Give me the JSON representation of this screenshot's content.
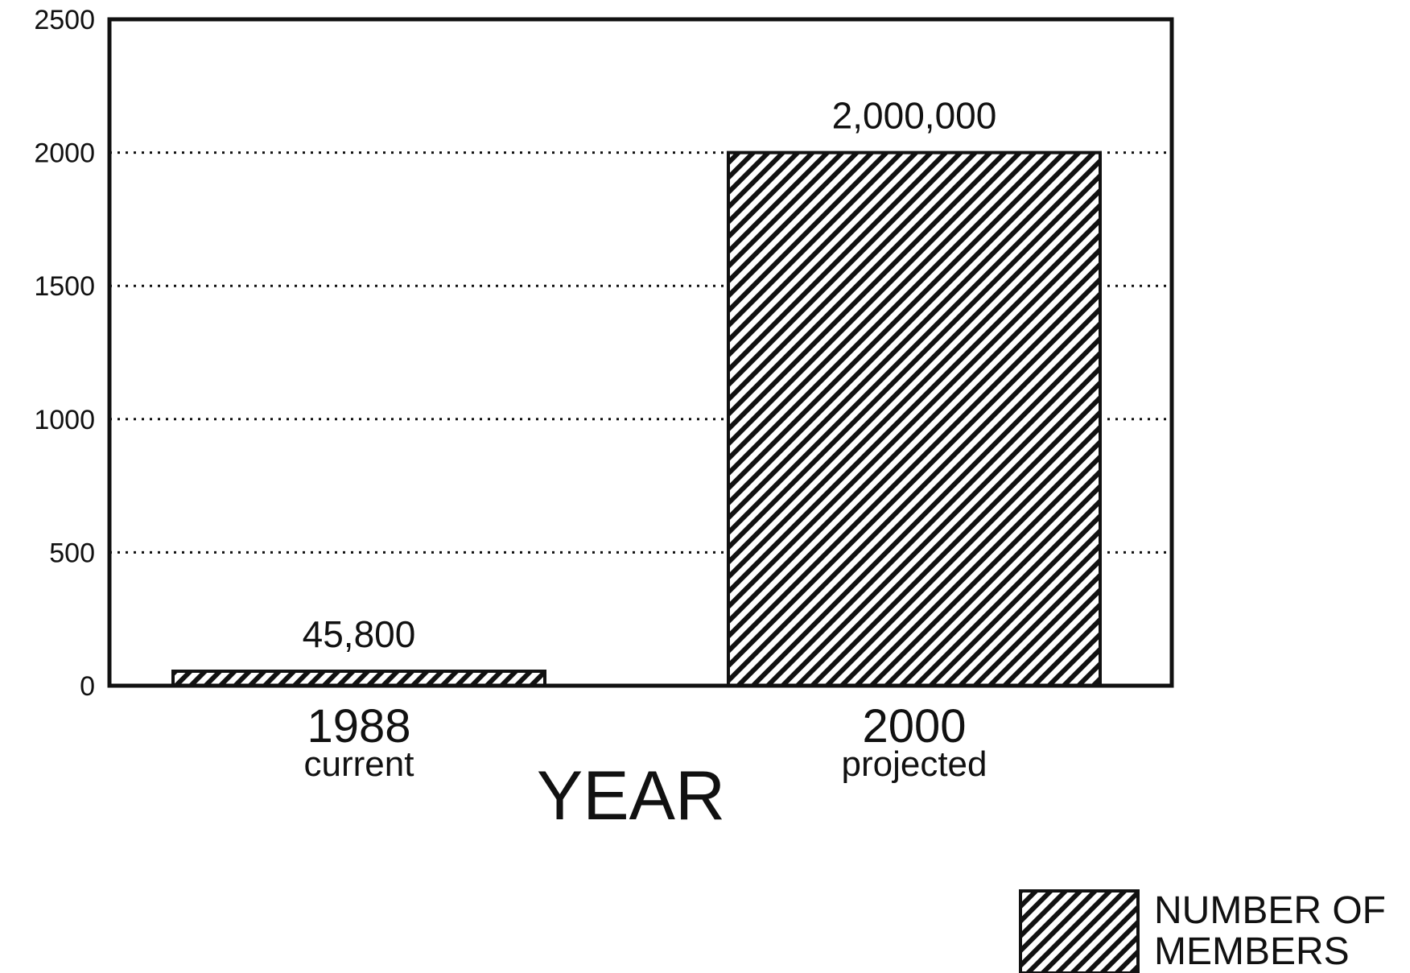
{
  "chart_data": {
    "type": "bar",
    "categories": [
      "1988",
      "2000"
    ],
    "category_sublabels": [
      "current",
      "projected"
    ],
    "values": [
      45.8,
      2000
    ],
    "data_labels": [
      "45,800",
      "2,000,000"
    ],
    "title": "",
    "xlabel": "YEAR",
    "ylabel": "",
    "ylim": [
      0,
      2500
    ],
    "yticks": [
      "0",
      "500",
      "1000",
      "1500",
      "2000",
      "2500"
    ],
    "grid": "horizontal-dotted",
    "legend_position": "bottom-right",
    "legend": {
      "line1": "NUMBER OF",
      "line2": "MEMBERS"
    },
    "fill": "diagonal-hatch",
    "colors": {
      "ink": "#111111",
      "background": "#ffffff"
    }
  }
}
